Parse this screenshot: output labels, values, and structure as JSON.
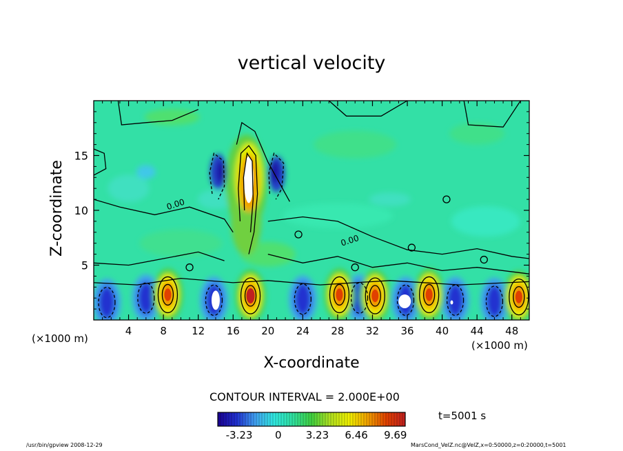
{
  "title": "vertical velocity",
  "xlabel": "X-coordinate",
  "ylabel": "Z-coordinate",
  "x_unit_left": "(×1000 m)",
  "x_unit_right": "(×1000 m)",
  "contour_interval_text": "CONTOUR INTERVAL = 2.000E+00",
  "time_text": "t=5001 s",
  "footer_left": "/usr/bin/gpview   2008-12-29",
  "footer_right": "MarsCond_VelZ.nc@VelZ,x=0:50000,z=0:20000,t=5001",
  "chart_data": {
    "type": "heatmap",
    "title": "vertical velocity",
    "xlabel": "X-coordinate",
    "ylabel": "Z-coordinate",
    "xlim": [
      0,
      50
    ],
    "ylim": [
      0,
      20
    ],
    "x_ticks": [
      4,
      8,
      12,
      16,
      20,
      24,
      28,
      32,
      36,
      40,
      44,
      48
    ],
    "y_ticks": [
      5,
      10,
      15
    ],
    "contour_labels": [
      {
        "text": "0.00",
        "x": 9.5,
        "z": 10.3
      },
      {
        "text": "0.00",
        "x": 29.5,
        "z": 7.0
      }
    ],
    "colorbar": {
      "min": -5.0,
      "max": 10.5,
      "tick_values": [
        -3.23,
        0,
        3.23,
        6.46,
        9.69
      ],
      "tick_labels": [
        "-3.23",
        "0",
        "3.23",
        "6.46",
        "9.69"
      ]
    },
    "contour_interval": 2.0,
    "time": "t=5001 s"
  }
}
